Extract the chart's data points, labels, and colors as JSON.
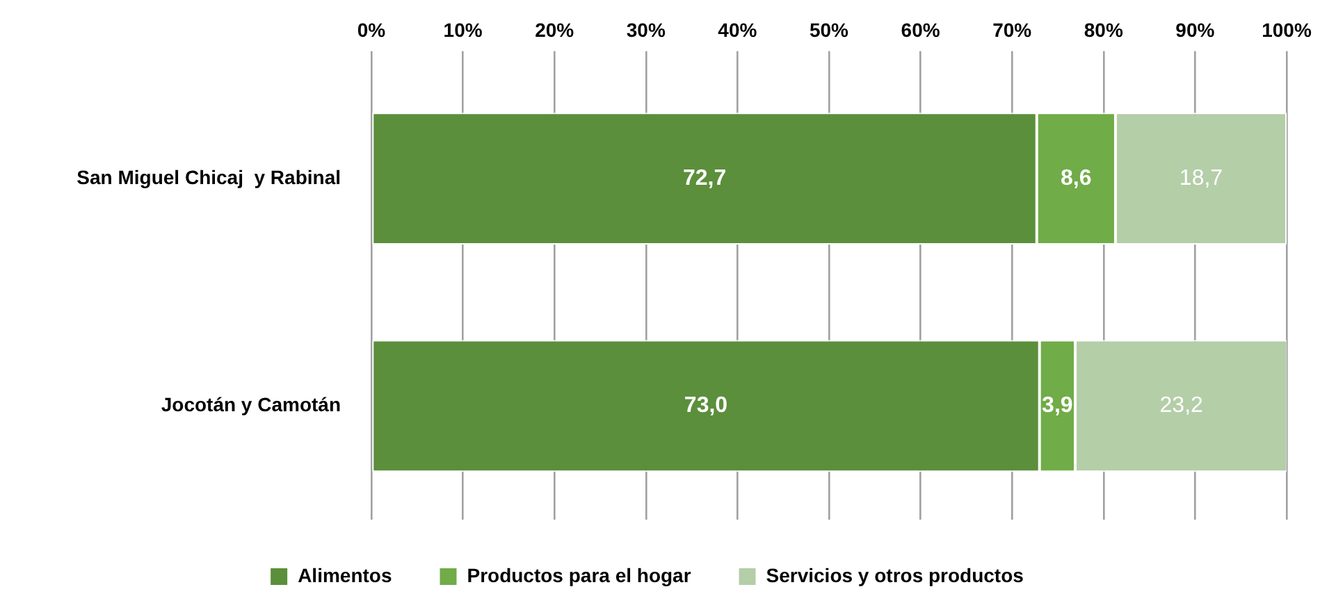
{
  "chart_data": {
    "type": "bar",
    "orientation": "horizontal",
    "stacked": true,
    "categories": [
      "San Miguel Chicaj  y Rabinal",
      "Jocotán y Camotán"
    ],
    "series": [
      {
        "name": "Alimentos",
        "color": "#5b8f3b",
        "values": [
          72.7,
          73.0
        ],
        "value_labels": [
          "72,7",
          "73,0"
        ]
      },
      {
        "name": "Productos para el hogar",
        "color": "#70ac47",
        "values": [
          8.6,
          3.9
        ],
        "value_labels": [
          "8,6",
          "3,9"
        ]
      },
      {
        "name": "Servicios y otros productos",
        "color": "#b4cea8",
        "values": [
          18.7,
          23.2
        ],
        "value_labels": [
          "18,7",
          "23,2"
        ]
      }
    ],
    "xlim": [
      0,
      100
    ],
    "xticks": [
      {
        "value": 0,
        "label": "0%"
      },
      {
        "value": 10,
        "label": "10%"
      },
      {
        "value": 20,
        "label": "20%"
      },
      {
        "value": 30,
        "label": "30%"
      },
      {
        "value": 40,
        "label": "40%"
      },
      {
        "value": 50,
        "label": "50%"
      },
      {
        "value": 60,
        "label": "60%"
      },
      {
        "value": 70,
        "label": "70%"
      },
      {
        "value": 80,
        "label": "80%"
      },
      {
        "value": 90,
        "label": "90%"
      },
      {
        "value": 100,
        "label": "100%"
      }
    ],
    "grid": "x",
    "legend": "bottom"
  }
}
